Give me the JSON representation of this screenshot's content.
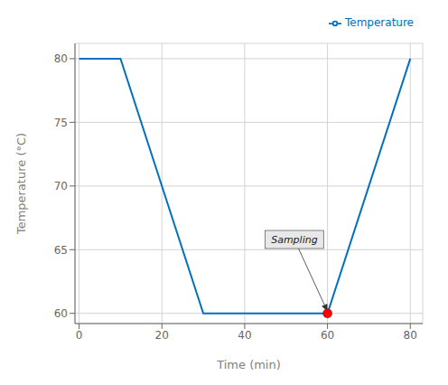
{
  "chart_data": {
    "type": "line",
    "x": [
      0,
      10,
      30,
      60,
      80
    ],
    "series": [
      {
        "name": "Temperature",
        "color": "#0070C0",
        "values": [
          80,
          80,
          60,
          60,
          80
        ]
      }
    ],
    "points": [
      {
        "x": 60,
        "y": 60,
        "color": "#FF0000"
      }
    ],
    "annotations": [
      {
        "text": "Sampling",
        "x": 60,
        "y": 60.15,
        "text_x": 52,
        "text_y": 65.8
      }
    ],
    "xlabel": "Time (min)",
    "ylabel": "Temperature (°C)",
    "xlim": [
      -1,
      83
    ],
    "ylim": [
      59.2,
      81.2
    ],
    "xticks": [
      0,
      20,
      40,
      60,
      80
    ],
    "yticks": [
      60,
      65,
      70,
      75,
      80
    ],
    "grid": true,
    "legend": "upper right"
  }
}
